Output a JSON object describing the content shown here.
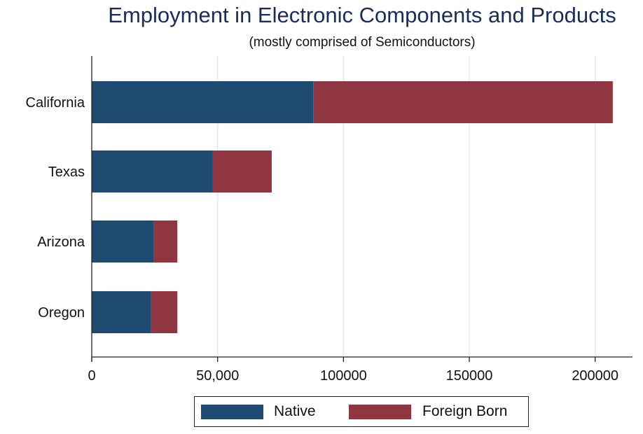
{
  "chart_data": {
    "type": "bar",
    "orientation": "horizontal",
    "stacked": true,
    "title": "Employment in Electronic Components and Products",
    "subtitle": "(mostly comprised of Semiconductors)",
    "categories": [
      "California",
      "Texas",
      "Arizona",
      "Oregon"
    ],
    "series": [
      {
        "name": "Native",
        "color": "#1f4a72",
        "values": [
          88000,
          48000,
          24500,
          23500
        ]
      },
      {
        "name": "Foreign Born",
        "color": "#8f3640",
        "values": [
          119000,
          23500,
          9500,
          10500
        ]
      }
    ],
    "xlim": [
      0,
      214000
    ],
    "xticks": [
      {
        "value": 0,
        "label": "0"
      },
      {
        "value": 50000,
        "label": "50,000"
      },
      {
        "value": 100000,
        "label": "100000"
      },
      {
        "value": 150000,
        "label": "150000"
      },
      {
        "value": 200000,
        "label": "200000"
      }
    ],
    "grid": true,
    "legend_position": "bottom"
  }
}
